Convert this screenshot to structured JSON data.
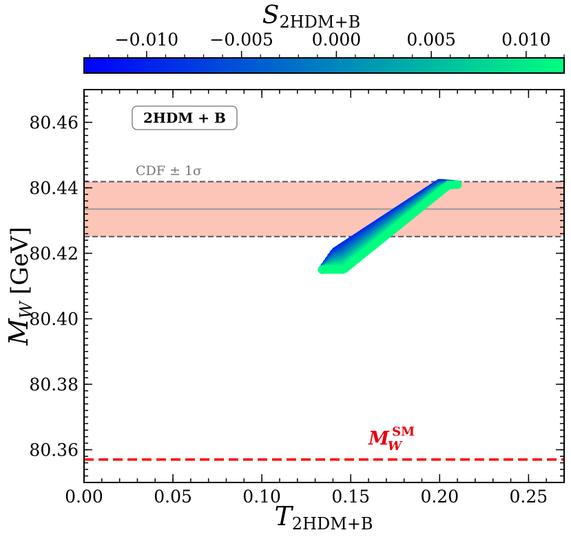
{
  "chart_data": {
    "type": "scatter",
    "xlabel": "T",
    "xlabel_sub": "2HDM+B",
    "ylabel": "M",
    "ylabel_sub": "W",
    "ylabel_unit": "[GeV]",
    "xlim": [
      0.0,
      0.27
    ],
    "ylim": [
      80.35,
      80.47
    ],
    "x_ticks": [
      0.0,
      0.05,
      0.1,
      0.15,
      0.2,
      0.25
    ],
    "x_tick_labels": [
      "0.00",
      "0.05",
      "0.10",
      "0.15",
      "0.20",
      "0.25"
    ],
    "y_ticks": [
      80.36,
      80.38,
      80.4,
      80.42,
      80.44,
      80.46
    ],
    "y_tick_labels": [
      "80.36",
      "80.38",
      "80.40",
      "80.42",
      "80.44",
      "80.46"
    ],
    "colorbar": {
      "label": "S",
      "label_sub": "2HDM+B",
      "range": [
        -0.0133,
        0.012
      ],
      "ticks": [
        -0.01,
        -0.005,
        0.0,
        0.005,
        0.01
      ],
      "tick_labels": [
        "−0.010",
        "−0.005",
        "0.000",
        "0.005",
        "0.010"
      ],
      "colors": [
        "#0000ff",
        "#0080bf",
        "#00ff80"
      ],
      "colormap": "winter"
    },
    "cdf_band": {
      "label": "CDF ± 1σ",
      "center": 80.4335,
      "low": 80.4251,
      "high": 80.4419,
      "fill_color": "#fcc5b7",
      "line_color": "#999999",
      "edge_color": "#555566"
    },
    "sm_line": {
      "label": "M",
      "label_sub": "W",
      "label_sup": "SM",
      "value": 80.357,
      "color": "#ff0000"
    },
    "annotation": "2HDM + B",
    "scatter_region": {
      "t_range": [
        0.134,
        0.21
      ],
      "mw_range": [
        80.415,
        80.441
      ],
      "lower_edge": [
        [
          0.134,
          80.415
        ],
        [
          0.146,
          80.415
        ],
        [
          0.205,
          80.4408
        ],
        [
          0.21,
          80.441
        ]
      ],
      "upper_edge": [
        [
          0.134,
          80.415
        ],
        [
          0.141,
          80.4205
        ],
        [
          0.2,
          80.4415
        ],
        [
          0.21,
          80.441
        ]
      ],
      "s_low_side": -0.0133,
      "s_high_side": 0.012
    }
  }
}
